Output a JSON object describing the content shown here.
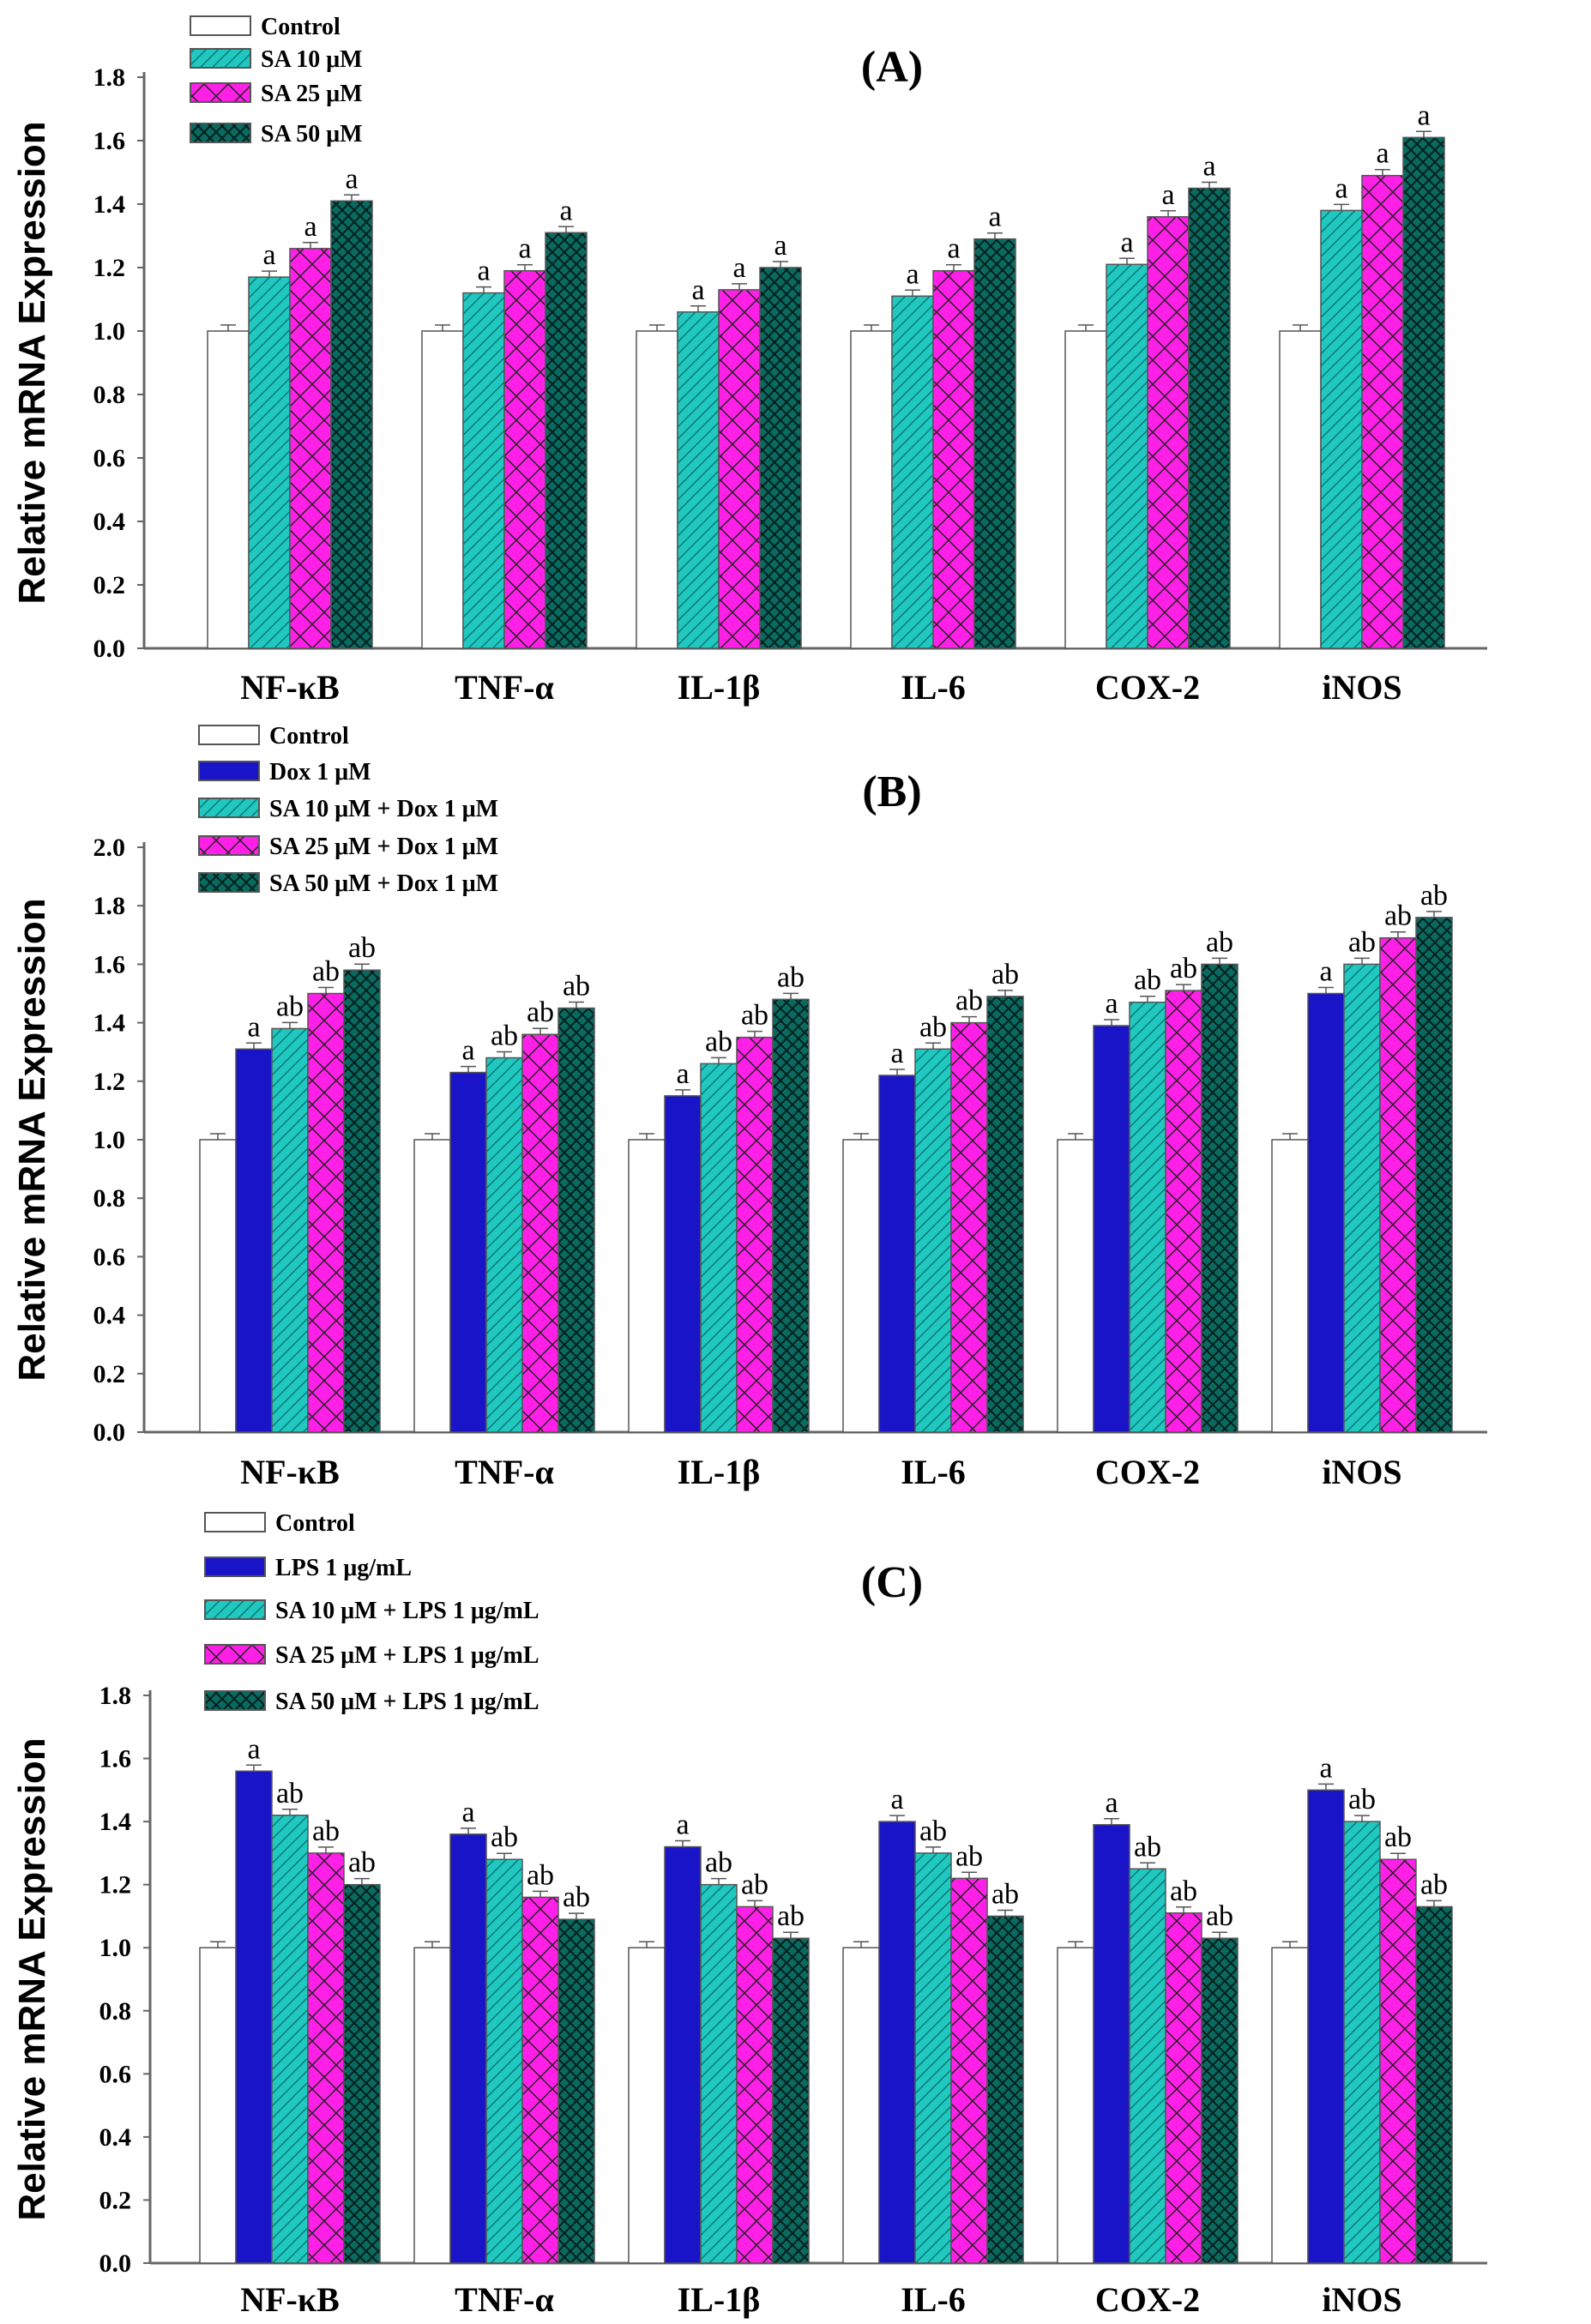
{
  "colors": {
    "control": "#ffffff",
    "dark_blue": "#1a14c8",
    "cyan": "#20c8c0",
    "magenta": "#ff20e8",
    "dark_teal": "#0a6a60"
  },
  "chart_data": [
    {
      "type": "bar",
      "title": "(A)",
      "ylabel": "Relative mRNA Expression",
      "xlabel": "",
      "ylim": [
        0,
        1.8
      ],
      "yticks": [
        "0.0",
        "0.2",
        "0.4",
        "0.6",
        "0.8",
        "1.0",
        "1.2",
        "1.4",
        "1.6",
        "1.8"
      ],
      "categories": [
        "NF-κB",
        "TNF-α",
        "IL-1β",
        "IL-6",
        "COX-2",
        "iNOS"
      ],
      "legend_position": "top-left",
      "series": [
        {
          "name": "Control",
          "pattern": "none",
          "color": "#ffffff",
          "values": [
            1.0,
            1.0,
            1.0,
            1.0,
            1.0,
            1.0
          ],
          "labels": [
            "",
            "",
            "",
            "",
            "",
            ""
          ]
        },
        {
          "name": "SA 10 μM",
          "pattern": "diagonal",
          "color": "#20c8c0",
          "values": [
            1.17,
            1.12,
            1.06,
            1.11,
            1.21,
            1.38
          ],
          "labels": [
            "a",
            "a",
            "a",
            "a",
            "a",
            "a"
          ]
        },
        {
          "name": "SA 25 μM",
          "pattern": "crosshatch",
          "color": "#ff20e8",
          "values": [
            1.26,
            1.19,
            1.13,
            1.19,
            1.36,
            1.49
          ],
          "labels": [
            "a",
            "a",
            "a",
            "a",
            "a",
            "a"
          ]
        },
        {
          "name": "SA 50 μM",
          "pattern": "dense-cross",
          "color": "#0a6a60",
          "values": [
            1.41,
            1.31,
            1.2,
            1.29,
            1.45,
            1.61
          ],
          "labels": [
            "a",
            "a",
            "a",
            "a",
            "a",
            "a"
          ]
        }
      ]
    },
    {
      "type": "bar",
      "title": "(B)",
      "ylabel": "Relative mRNA Expression",
      "xlabel": "",
      "ylim": [
        0,
        2.0
      ],
      "yticks": [
        "0.0",
        "0.2",
        "0.4",
        "0.6",
        "0.8",
        "1.0",
        "1.2",
        "1.4",
        "1.6",
        "1.8",
        "2.0"
      ],
      "categories": [
        "NF-κB",
        "TNF-α",
        "IL-1β",
        "IL-6",
        "COX-2",
        "iNOS"
      ],
      "legend_position": "top-left",
      "series": [
        {
          "name": "Control",
          "pattern": "none",
          "color": "#ffffff",
          "values": [
            1.0,
            1.0,
            1.0,
            1.0,
            1.0,
            1.0
          ],
          "labels": [
            "",
            "",
            "",
            "",
            "",
            ""
          ]
        },
        {
          "name": "Dox 1 μM",
          "pattern": "solid",
          "color": "#1a14c8",
          "values": [
            1.31,
            1.23,
            1.15,
            1.22,
            1.39,
            1.5
          ],
          "labels": [
            "a",
            "a",
            "a",
            "a",
            "a",
            "a"
          ]
        },
        {
          "name": "SA 10 μM + Dox 1 μM",
          "pattern": "diagonal",
          "color": "#20c8c0",
          "values": [
            1.38,
            1.28,
            1.26,
            1.31,
            1.47,
            1.6
          ],
          "labels": [
            "ab",
            "ab",
            "ab",
            "ab",
            "ab",
            "ab"
          ]
        },
        {
          "name": "SA 25 μM + Dox 1 μM",
          "pattern": "crosshatch",
          "color": "#ff20e8",
          "values": [
            1.5,
            1.36,
            1.35,
            1.4,
            1.51,
            1.69
          ],
          "labels": [
            "ab",
            "ab",
            "ab",
            "ab",
            "ab",
            "ab"
          ]
        },
        {
          "name": "SA 50 μM + Dox 1 μM",
          "pattern": "dense-cross",
          "color": "#0a6a60",
          "values": [
            1.58,
            1.45,
            1.48,
            1.49,
            1.6,
            1.76
          ],
          "labels": [
            "ab",
            "ab",
            "ab",
            "ab",
            "ab",
            "ab"
          ]
        }
      ]
    },
    {
      "type": "bar",
      "title": "(C)",
      "ylabel": "Relative mRNA Expression",
      "xlabel": "",
      "ylim": [
        0,
        1.8
      ],
      "yticks": [
        "0.0",
        "0.2",
        "0.4",
        "0.6",
        "0.8",
        "1.0",
        "1.2",
        "1.4",
        "1.6",
        "1.8"
      ],
      "categories": [
        "NF-κB",
        "TNF-α",
        "IL-1β",
        "IL-6",
        "COX-2",
        "iNOS"
      ],
      "legend_position": "top-left",
      "series": [
        {
          "name": "Control",
          "pattern": "none",
          "color": "#ffffff",
          "values": [
            1.0,
            1.0,
            1.0,
            1.0,
            1.0,
            1.0
          ],
          "labels": [
            "",
            "",
            "",
            "",
            "",
            ""
          ]
        },
        {
          "name": "LPS 1 μg/mL",
          "pattern": "solid",
          "color": "#1a14c8",
          "values": [
            1.56,
            1.36,
            1.32,
            1.4,
            1.39,
            1.5
          ],
          "labels": [
            "a",
            "a",
            "a",
            "a",
            "a",
            "a"
          ]
        },
        {
          "name": "SA 10 μM + LPS 1 μg/mL",
          "pattern": "diagonal",
          "color": "#20c8c0",
          "values": [
            1.42,
            1.28,
            1.2,
            1.3,
            1.25,
            1.4
          ],
          "labels": [
            "ab",
            "ab",
            "ab",
            "ab",
            "ab",
            "ab"
          ]
        },
        {
          "name": "SA 25 μM + LPS 1 μg/mL",
          "pattern": "crosshatch",
          "color": "#ff20e8",
          "values": [
            1.3,
            1.16,
            1.13,
            1.22,
            1.11,
            1.28
          ],
          "labels": [
            "ab",
            "ab",
            "ab",
            "ab",
            "ab",
            "ab"
          ]
        },
        {
          "name": "SA 50 μM + LPS 1 μg/mL",
          "pattern": "dense-cross",
          "color": "#0a6a60",
          "values": [
            1.2,
            1.09,
            1.03,
            1.1,
            1.03,
            1.13
          ],
          "labels": [
            "ab",
            "ab",
            "ab",
            "ab",
            "ab",
            "ab"
          ]
        }
      ]
    }
  ]
}
